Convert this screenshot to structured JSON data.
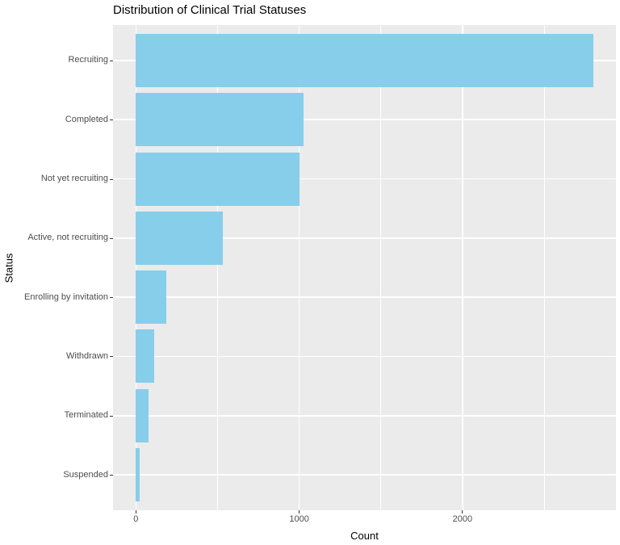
{
  "chart_data": {
    "type": "bar",
    "orientation": "horizontal",
    "title": "Distribution of Clinical Trial Statuses",
    "xlabel": "Count",
    "ylabel": "Status",
    "categories": [
      "Recruiting",
      "Completed",
      "Not yet recruiting",
      "Active, not recruiting",
      "Enrolling by invitation",
      "Withdrawn",
      "Terminated",
      "Suspended"
    ],
    "values": [
      2800,
      1025,
      1000,
      530,
      185,
      110,
      80,
      25
    ],
    "xlim": [
      -140,
      2940
    ],
    "x_major_ticks": [
      0,
      1000,
      2000
    ],
    "x_major_tick_labels": [
      "0",
      "1000",
      "2000"
    ],
    "x_minor_gridlines": [
      500,
      1500,
      2500
    ],
    "bar_width_fraction": 0.9,
    "grid": true,
    "legend": false,
    "colors": {
      "bar_fill": "#87CEEB",
      "panel_background": "#EBEBEB",
      "gridline": "#FFFFFF",
      "tick_label": "#4D4D4D",
      "tick_mark": "#333333",
      "axis_title": "#000000",
      "title": "#000000",
      "page_background": "#FFFFFF"
    }
  }
}
